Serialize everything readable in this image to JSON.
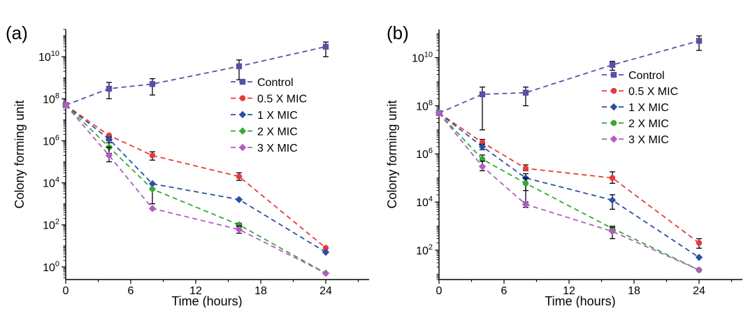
{
  "chart_data": [
    {
      "panel_label": "(a)",
      "type": "line",
      "xlabel": "Time (hours)",
      "ylabel": "Colony forming unit",
      "xlim": [
        0,
        28
      ],
      "ylim": [
        0.25,
        200000000000.0
      ],
      "yscale": "log",
      "x_ticks": [
        0,
        6,
        12,
        18,
        24
      ],
      "x_tick_labels": [
        "0",
        "6",
        "12",
        "18",
        "24"
      ],
      "y_ticks": [
        1,
        100,
        10000,
        1000000,
        100000000,
        10000000000
      ],
      "y_tick_labels": [
        {
          "b": "10",
          "e": "0"
        },
        {
          "b": "10",
          "e": "2"
        },
        {
          "b": "10",
          "e": "4"
        },
        {
          "b": "10",
          "e": "6"
        },
        {
          "b": "10",
          "e": "8"
        },
        {
          "b": "10",
          "e": "10"
        }
      ],
      "legend_position": "center-right",
      "x": [
        0,
        4,
        8,
        16,
        24
      ],
      "series": [
        {
          "name": "Control",
          "color": "#5a4fa8",
          "marker": "square",
          "values": [
            50000000.0,
            300000000.0,
            500000000.0,
            3500000000.0,
            30000000000.0
          ],
          "err_low": [
            50000000.0,
            100000000.0,
            150000000.0,
            800000000.0,
            10000000000.0
          ],
          "err_high": [
            50000000.0,
            600000000.0,
            900000000.0,
            7000000000.0,
            50000000000.0
          ]
        },
        {
          "name": "0.5 X MIC",
          "color": "#e83a3a",
          "marker": "circle",
          "values": [
            50000000.0,
            1800000.0,
            200000.0,
            20000.0,
            8
          ],
          "err_low": [
            50000000.0,
            1800000.0,
            120000.0,
            13000.0,
            8
          ],
          "err_high": [
            50000000.0,
            1800000.0,
            300000.0,
            30000.0,
            8
          ]
        },
        {
          "name": "1 X MIC",
          "color": "#2c4fa3",
          "marker": "diamond",
          "values": [
            50000000.0,
            1200000.0,
            9000,
            1600,
            5
          ],
          "err_low": [
            50000000.0,
            1000000.0,
            1000,
            1600,
            5
          ],
          "err_high": [
            50000000.0,
            1500000.0,
            9000,
            1600,
            5
          ]
        },
        {
          "name": "2 X MIC",
          "color": "#35a835",
          "marker": "diamond",
          "values": [
            50000000.0,
            500000.0,
            5000,
            100,
            0.5
          ],
          "err_low": [
            50000000.0,
            250000.0,
            5000,
            80,
            0.5
          ],
          "err_high": [
            50000000.0,
            800000.0,
            5000,
            120,
            0.5
          ]
        },
        {
          "name": "3 X MIC",
          "color": "#b05cc0",
          "marker": "diamond",
          "values": [
            50000000.0,
            200000.0,
            600,
            60,
            0.5
          ],
          "err_low": [
            50000000.0,
            100000.0,
            600,
            40,
            0.5
          ],
          "err_high": [
            50000000.0,
            500000.0,
            600,
            90,
            0.5
          ]
        }
      ]
    },
    {
      "panel_label": "(b)",
      "type": "line",
      "xlabel": "Time (hours)",
      "ylabel": "Colony forming unit",
      "xlim": [
        0,
        28
      ],
      "ylim": [
        6,
        150000000000.0
      ],
      "yscale": "log",
      "x_ticks": [
        0,
        6,
        12,
        18,
        24
      ],
      "x_tick_labels": [
        "0",
        "6",
        "12",
        "18",
        "24"
      ],
      "y_ticks": [
        100,
        10000,
        1000000,
        100000000,
        10000000000
      ],
      "y_tick_labels": [
        {
          "b": "10",
          "e": "2"
        },
        {
          "b": "10",
          "e": "4"
        },
        {
          "b": "10",
          "e": "6"
        },
        {
          "b": "10",
          "e": "8"
        },
        {
          "b": "10",
          "e": "10"
        }
      ],
      "legend_position": "center-right",
      "x": [
        0,
        4,
        8,
        16,
        24
      ],
      "series": [
        {
          "name": "Control",
          "color": "#5a4fa8",
          "marker": "square",
          "values": [
            50000000.0,
            300000000.0,
            350000000.0,
            5000000000.0,
            50000000000.0
          ],
          "err_low": [
            50000000.0,
            10000000.0,
            100000000.0,
            3000000000.0,
            20000000000.0
          ],
          "err_high": [
            50000000.0,
            600000000.0,
            600000000.0,
            7000000000.0,
            80000000000.0
          ]
        },
        {
          "name": "0.5 X MIC",
          "color": "#e83a3a",
          "marker": "circle",
          "values": [
            50000000.0,
            3000000.0,
            250000.0,
            100000.0,
            200
          ],
          "err_low": [
            50000000.0,
            2000000.0,
            200000.0,
            60000.0,
            120
          ],
          "err_high": [
            50000000.0,
            4000000.0,
            350000.0,
            180000.0,
            300
          ]
        },
        {
          "name": "1 X MIC",
          "color": "#2c4fa3",
          "marker": "diamond",
          "values": [
            50000000.0,
            2000000.0,
            100000.0,
            12000.0,
            50
          ],
          "err_low": [
            50000000.0,
            1500000.0,
            8000.0,
            5000.0,
            50
          ],
          "err_high": [
            50000000.0,
            2500000.0,
            150000.0,
            20000.0,
            50
          ]
        },
        {
          "name": "2 X MIC",
          "color": "#35a835",
          "marker": "circle",
          "values": [
            50000000.0,
            600000.0,
            60000.0,
            800,
            15
          ],
          "err_low": [
            50000000.0,
            300000.0,
            30000.0,
            600,
            15
          ],
          "err_high": [
            50000000.0,
            900000.0,
            100000.0,
            1000,
            15
          ]
        },
        {
          "name": "3 X MIC",
          "color": "#b05cc0",
          "marker": "diamond",
          "values": [
            50000000.0,
            300000.0,
            8000,
            600,
            15
          ],
          "err_low": [
            50000000.0,
            200000.0,
            6000,
            300,
            15
          ],
          "err_high": [
            50000000.0,
            500000.0,
            10000.0,
            900,
            15
          ]
        }
      ]
    }
  ]
}
